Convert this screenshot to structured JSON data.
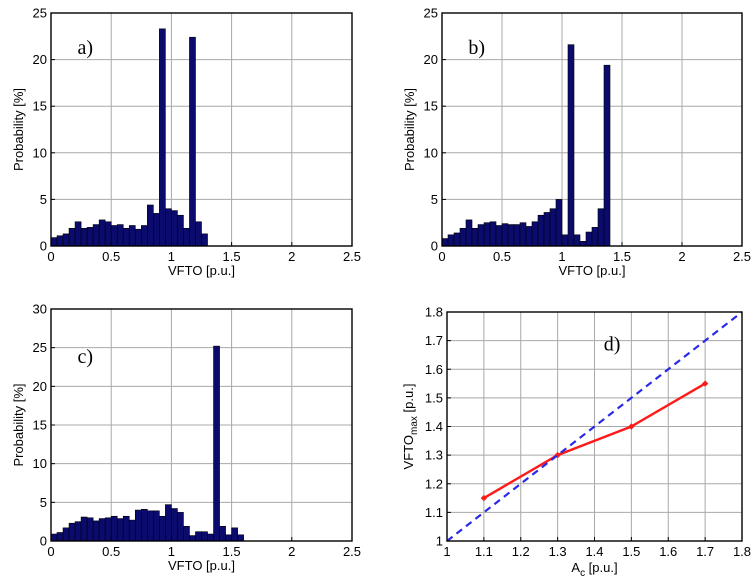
{
  "chart_data": [
    {
      "id": "a",
      "type": "bar",
      "panel_label": "a)",
      "xlabel": "VFTO [p.u.]",
      "ylabel": "Probability [%]",
      "xlim": [
        0,
        2.5
      ],
      "ylim": [
        0,
        25
      ],
      "xticks": [
        0,
        0.5,
        1,
        1.5,
        2,
        2.5
      ],
      "xtick_labels": [
        "0",
        "0.5",
        "1",
        "1.5",
        "2",
        "2.5"
      ],
      "yticks": [
        0,
        5,
        10,
        15,
        20,
        25
      ],
      "ytick_labels": [
        "0",
        "5",
        "10",
        "15",
        "20",
        "25"
      ],
      "grid": true,
      "bin_width": 0.05,
      "x": [
        0.025,
        0.075,
        0.125,
        0.175,
        0.225,
        0.275,
        0.325,
        0.375,
        0.425,
        0.475,
        0.525,
        0.575,
        0.625,
        0.675,
        0.725,
        0.775,
        0.825,
        0.875,
        0.925,
        0.975,
        1.025,
        1.075,
        1.125,
        1.175,
        1.225,
        1.275
      ],
      "values": [
        0.9,
        1.1,
        1.3,
        1.9,
        2.6,
        1.9,
        2.0,
        2.3,
        2.8,
        2.6,
        2.2,
        2.3,
        1.9,
        2.2,
        1.8,
        2.2,
        4.4,
        3.5,
        23.3,
        4.0,
        3.8,
        3.3,
        1.9,
        22.4,
        2.6,
        1.3
      ]
    },
    {
      "id": "b",
      "type": "bar",
      "panel_label": "b)",
      "xlabel": "VFTO [p.u.]",
      "ylabel": "Probability [%]",
      "xlim": [
        0,
        2.5
      ],
      "ylim": [
        0,
        25
      ],
      "xticks": [
        0,
        0.5,
        1,
        1.5,
        2,
        2.5
      ],
      "xtick_labels": [
        "0",
        "0.5",
        "1",
        "1.5",
        "2",
        "2.5"
      ],
      "yticks": [
        0,
        5,
        10,
        15,
        20,
        25
      ],
      "ytick_labels": [
        "0",
        "5",
        "10",
        "15",
        "20",
        "25"
      ],
      "grid": true,
      "bin_width": 0.05,
      "x": [
        0.025,
        0.075,
        0.125,
        0.175,
        0.225,
        0.275,
        0.325,
        0.375,
        0.425,
        0.475,
        0.525,
        0.575,
        0.625,
        0.675,
        0.725,
        0.775,
        0.825,
        0.875,
        0.925,
        0.975,
        1.025,
        1.075,
        1.125,
        1.175,
        1.225,
        1.275,
        1.325,
        1.375
      ],
      "values": [
        0.8,
        1.2,
        1.4,
        1.9,
        2.8,
        1.9,
        2.3,
        2.5,
        2.6,
        2.2,
        2.4,
        2.3,
        2.3,
        2.5,
        2.1,
        2.6,
        3.3,
        3.6,
        4.0,
        5.0,
        1.2,
        21.6,
        1.2,
        0.5,
        1.5,
        2.0,
        4.0,
        19.4
      ]
    },
    {
      "id": "c",
      "type": "bar",
      "panel_label": "c)",
      "xlabel": "VFTO [p.u.]",
      "ylabel": "Probability [%]",
      "xlim": [
        0,
        2.5
      ],
      "ylim": [
        0,
        30
      ],
      "xticks": [
        0,
        0.5,
        1,
        1.5,
        2,
        2.5
      ],
      "xtick_labels": [
        "0",
        "0.5",
        "1",
        "1.5",
        "2",
        "2.5"
      ],
      "yticks": [
        0,
        5,
        10,
        15,
        20,
        25,
        30
      ],
      "ytick_labels": [
        "0",
        "5",
        "10",
        "15",
        "20",
        "25",
        "30"
      ],
      "grid": true,
      "bin_width": 0.05,
      "x": [
        0.025,
        0.075,
        0.125,
        0.175,
        0.225,
        0.275,
        0.325,
        0.375,
        0.425,
        0.475,
        0.525,
        0.575,
        0.625,
        0.675,
        0.725,
        0.775,
        0.825,
        0.875,
        0.925,
        0.975,
        1.025,
        1.075,
        1.125,
        1.175,
        1.225,
        1.275,
        1.325,
        1.375,
        1.425,
        1.475,
        1.525,
        1.575
      ],
      "values": [
        0.9,
        1.1,
        1.7,
        2.3,
        2.5,
        3.1,
        3.0,
        2.6,
        2.9,
        3.0,
        3.2,
        2.9,
        3.2,
        2.7,
        4.0,
        4.1,
        3.9,
        3.9,
        3.2,
        4.7,
        4.2,
        3.7,
        1.9,
        0.7,
        1.2,
        1.2,
        0.9,
        25.2,
        1.9,
        0.8,
        1.7,
        0.8
      ]
    },
    {
      "id": "d",
      "type": "line",
      "panel_label": "d)",
      "xlabel_main": "A",
      "xlabel_sub": "c",
      "xlabel_unit": " [p.u.]",
      "ylabel_main": "VFTO",
      "ylabel_sub": "max",
      "ylabel_unit": " [p.u.]",
      "xlim": [
        1,
        1.8
      ],
      "ylim": [
        1,
        1.8
      ],
      "xticks": [
        1,
        1.1,
        1.2,
        1.3,
        1.4,
        1.5,
        1.6,
        1.7,
        1.8
      ],
      "xtick_labels": [
        "1",
        "1.1",
        "1.2",
        "1.3",
        "1.4",
        "1.5",
        "1.6",
        "1.7",
        "1.8"
      ],
      "yticks": [
        1,
        1.1,
        1.2,
        1.3,
        1.4,
        1.5,
        1.6,
        1.7,
        1.8
      ],
      "ytick_labels": [
        "1",
        "1.1",
        "1.2",
        "1.3",
        "1.4",
        "1.5",
        "1.6",
        "1.7",
        "1.8"
      ],
      "grid": true,
      "series": [
        {
          "x": [
            1.1,
            1.3,
            1.5,
            1.7
          ],
          "values": [
            1.15,
            1.3,
            1.4,
            1.55
          ],
          "color": "#ff1a1a",
          "style": "solid",
          "markers": true
        },
        {
          "x": [
            1.0,
            1.8
          ],
          "values": [
            1.0,
            1.8
          ],
          "color": "#2a2ae6",
          "style": "dashed",
          "markers": false
        }
      ]
    }
  ],
  "colors": {
    "bar_fill": "#0b0b6e",
    "grid": "#a8a8a8"
  }
}
